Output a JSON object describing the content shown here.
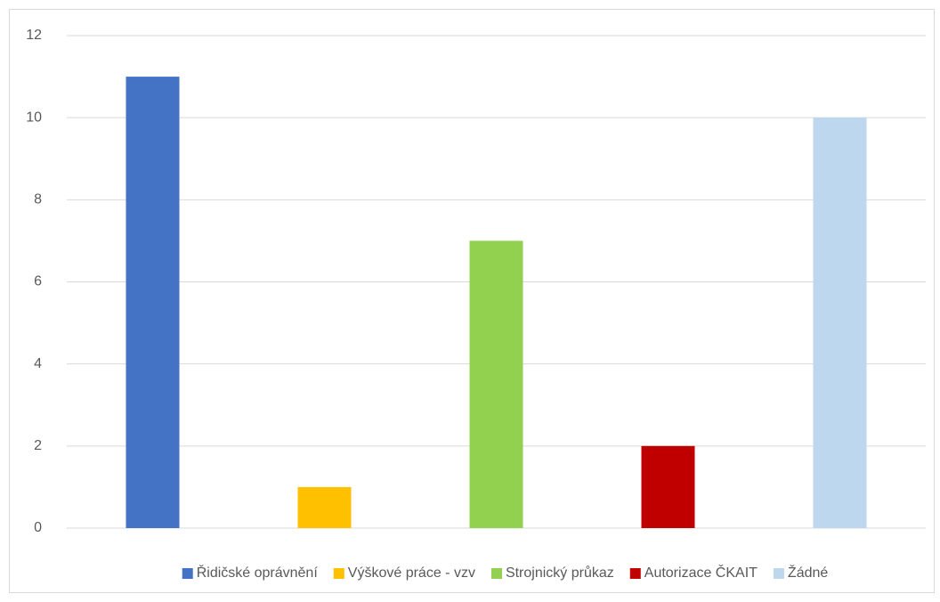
{
  "chart_data": {
    "type": "bar",
    "categories": [
      null,
      null,
      null,
      null,
      null
    ],
    "series": [
      {
        "name": "Řidičské oprávnění",
        "color": "#4472c4",
        "values": [
          11,
          null,
          null,
          null,
          null
        ]
      },
      {
        "name": "Výškové práce - vzv",
        "color": "#ffc000",
        "values": [
          null,
          1,
          null,
          null,
          null
        ]
      },
      {
        "name": "Strojnický průkaz",
        "color": "#92d050",
        "values": [
          null,
          null,
          7,
          null,
          null
        ]
      },
      {
        "name": "Autorizace ČKAIT",
        "color": "#c00000",
        "values": [
          null,
          null,
          null,
          2,
          null
        ]
      },
      {
        "name": "Žádné",
        "color": "#bdd7ee",
        "values": [
          null,
          null,
          null,
          null,
          10
        ]
      }
    ],
    "ylim": [
      0,
      12
    ],
    "yticks": [
      0,
      2,
      4,
      6,
      8,
      10,
      12
    ],
    "grid": true,
    "legend": "bottom"
  }
}
